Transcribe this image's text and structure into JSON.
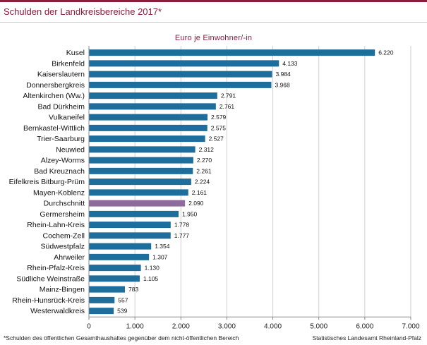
{
  "title": "Schulden der Landkreisbereiche 2017*",
  "footnote": "*Schulden des öffentlichen Gesamthaushaltes gegenüber dem nicht-öffentlichen Bereich",
  "source": "Statistisches Landesamt Rheinland-Pfalz",
  "colors": {
    "bar": "#1d6e9c",
    "highlight": "#8e6b9c",
    "title": "#8a1c3c",
    "grid": "#d0d0d0"
  },
  "chart_data": {
    "type": "bar",
    "orientation": "horizontal",
    "title": "Schulden der Landkreisbereiche 2017*",
    "unit_label": "Euro je Einwohner/-in",
    "categories": [
      "Kusel",
      "Birkenfeld",
      "Kaiserslautern",
      "Donnersbergkreis",
      "Altenkirchen (Ww.)",
      "Bad Dürkheim",
      "Vulkaneifel",
      "Bernkastel-Wittlich",
      "Trier-Saarburg",
      "Neuwied",
      "Alzey-Worms",
      "Bad Kreuznach",
      "Eifelkreis Bitburg-Prüm",
      "Mayen-Koblenz",
      "Durchschnitt",
      "Germersheim",
      "Rhein-Lahn-Kreis",
      "Cochem-Zell",
      "Südwestpfalz",
      "Ahrweiler",
      "Rhein-Pfalz-Kreis",
      "Südliche Weinstraße",
      "Mainz-Bingen",
      "Rhein-Hunsrück-Kreis",
      "Westerwaldkreis"
    ],
    "values": [
      6220,
      4133,
      3984,
      3968,
      2791,
      2761,
      2579,
      2575,
      2527,
      2312,
      2270,
      2261,
      2224,
      2161,
      2090,
      1950,
      1778,
      1777,
      1354,
      1307,
      1130,
      1105,
      783,
      557,
      539
    ],
    "value_labels": [
      "6.220",
      "4.133",
      "3.984",
      "3.968",
      "2.791",
      "2.761",
      "2.579",
      "2.575",
      "2.527",
      "2.312",
      "2.270",
      "2.261",
      "2.224",
      "2.161",
      "2.090",
      "1.950",
      "1.778",
      "1.777",
      "1.354",
      "1.307",
      "1.130",
      "1.105",
      "783",
      "557",
      "539"
    ],
    "highlight": "Durchschnitt",
    "xlim": [
      0,
      7000
    ],
    "xticks": [
      0,
      1000,
      2000,
      3000,
      4000,
      5000,
      6000,
      7000
    ],
    "xtick_labels": [
      "0",
      "1.000",
      "2.000",
      "3.000",
      "4.000",
      "5.000",
      "6.000",
      "7.000"
    ],
    "grid": true
  }
}
